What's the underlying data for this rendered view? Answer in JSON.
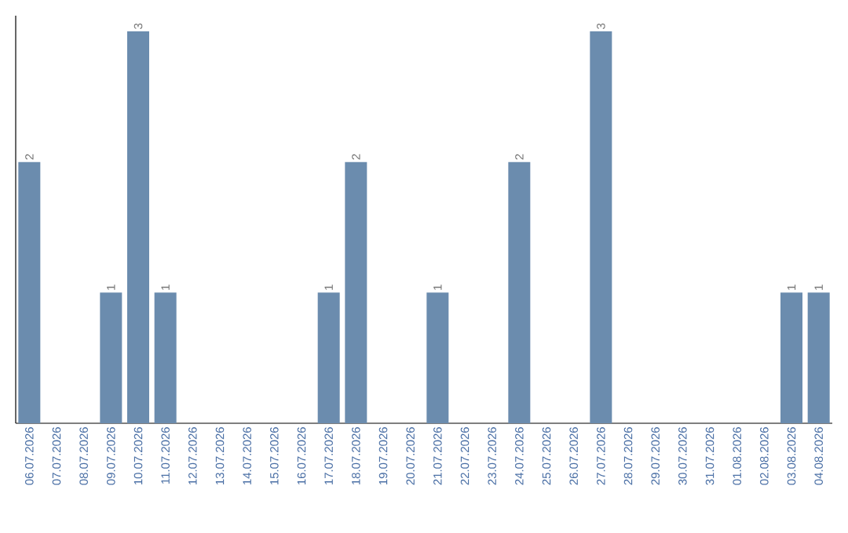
{
  "chart_data": {
    "type": "bar",
    "categories": [
      "06.07.2026",
      "07.07.2026",
      "08.07.2026",
      "09.07.2026",
      "10.07.2026",
      "11.07.2026",
      "12.07.2026",
      "13.07.2026",
      "14.07.2026",
      "15.07.2026",
      "16.07.2026",
      "17.07.2026",
      "18.07.2026",
      "19.07.2026",
      "20.07.2026",
      "21.07.2026",
      "22.07.2026",
      "23.07.2026",
      "24.07.2026",
      "25.07.2026",
      "26.07.2026",
      "27.07.2026",
      "28.07.2026",
      "29.07.2026",
      "30.07.2026",
      "31.07.2026",
      "01.08.2026",
      "02.08.2026",
      "03.08.2026",
      "04.08.2026"
    ],
    "values": [
      2,
      0,
      0,
      1,
      3,
      1,
      0,
      0,
      0,
      0,
      0,
      1,
      2,
      0,
      0,
      1,
      0,
      0,
      2,
      0,
      0,
      3,
      0,
      0,
      0,
      0,
      0,
      0,
      1,
      1
    ],
    "value_labels": [
      "2",
      null,
      null,
      "1",
      "3",
      "1",
      null,
      null,
      null,
      null,
      null,
      "1",
      "2",
      null,
      null,
      "1",
      null,
      null,
      "2",
      null,
      null,
      "3",
      null,
      null,
      null,
      null,
      null,
      null,
      "1",
      "1"
    ],
    "color": "#6b8cae"
  }
}
